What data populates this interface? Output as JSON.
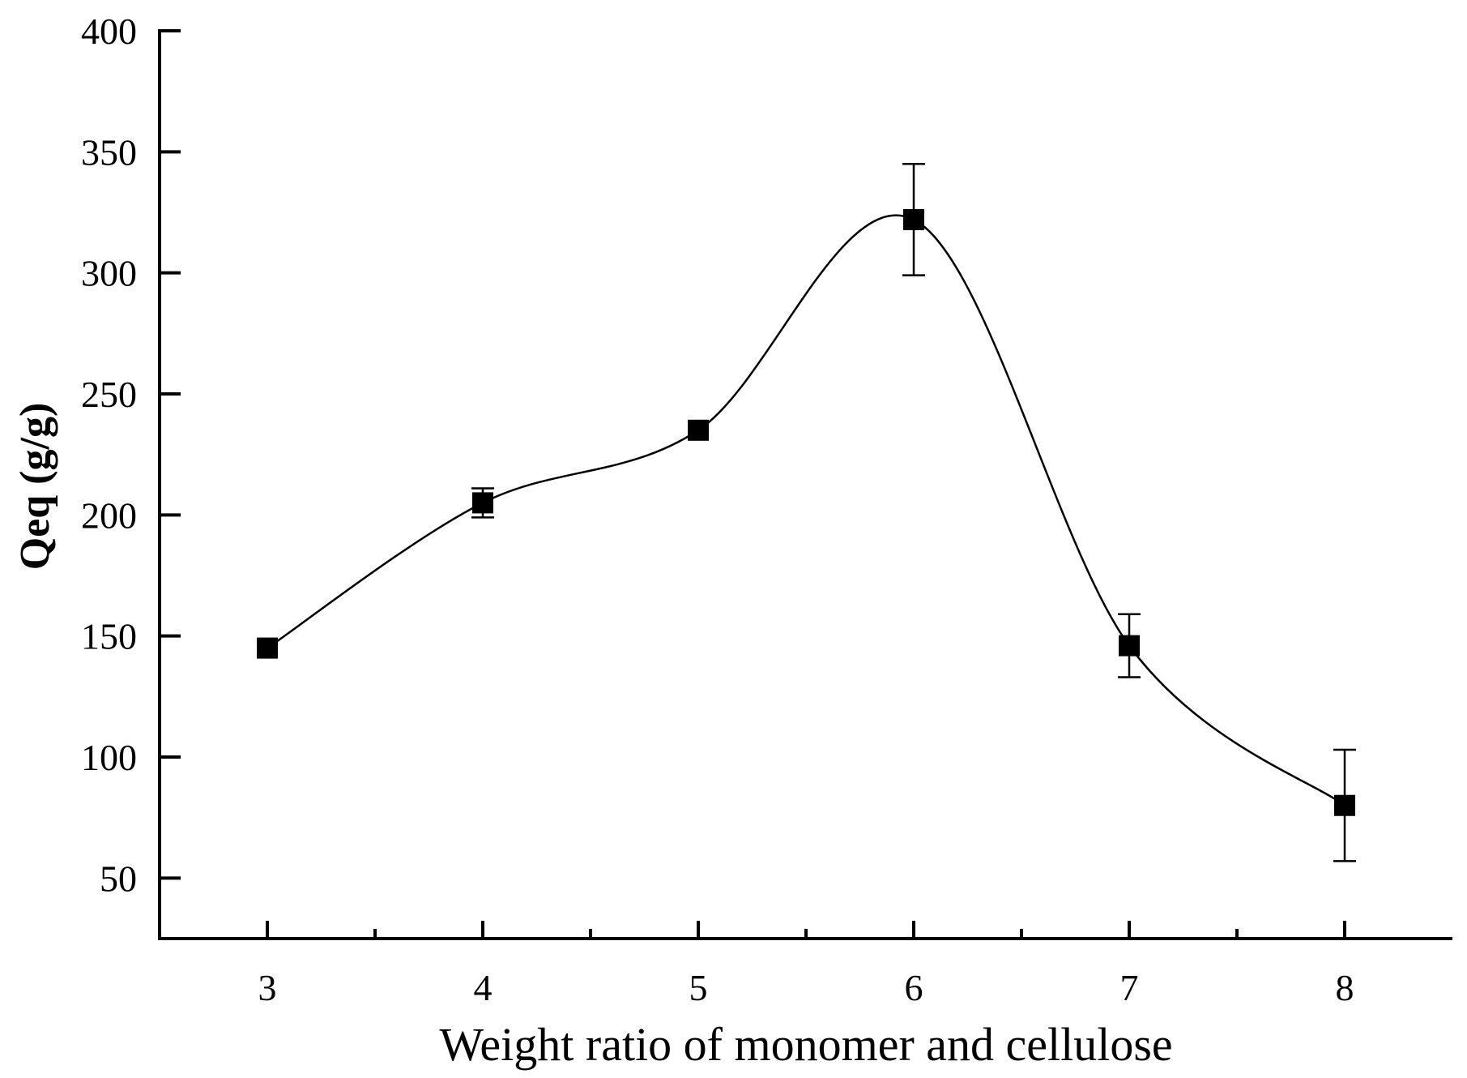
{
  "chart_data": {
    "type": "scatter",
    "title": "",
    "xlabel": "Weight ratio of monomer and cellulose",
    "ylabel": "Qeq (g/g)",
    "xlim": [
      2.5,
      8.5
    ],
    "ylim": [
      25,
      400
    ],
    "x_ticks": [
      3,
      4,
      5,
      6,
      7,
      8
    ],
    "y_ticks": [
      50,
      100,
      150,
      200,
      250,
      300,
      350,
      400
    ],
    "x_minor_ticks": [
      3.5,
      4.5,
      5.5,
      6.5,
      7.5
    ],
    "grid": false,
    "series": [
      {
        "name": "Qeq",
        "marker": "square",
        "line": "smooth",
        "color": "#000000",
        "x": [
          3,
          4,
          5,
          6,
          7,
          8
        ],
        "y": [
          145,
          205,
          235,
          322,
          146,
          80
        ],
        "error": [
          0,
          6,
          0,
          23,
          13,
          23
        ]
      }
    ]
  }
}
